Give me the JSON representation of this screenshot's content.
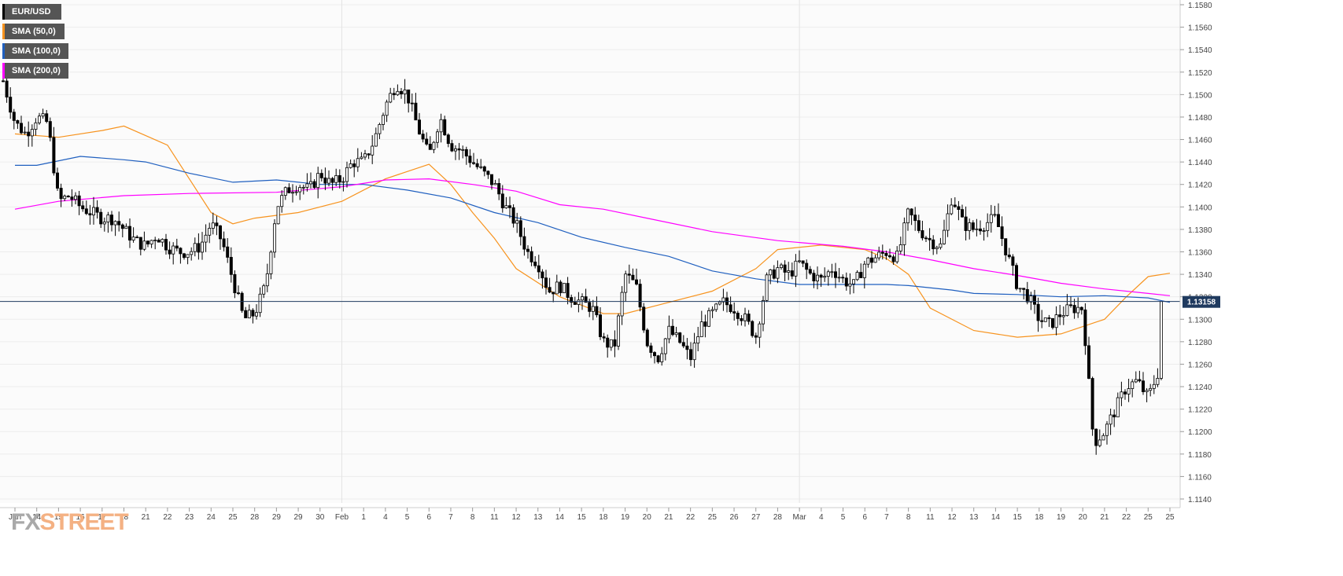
{
  "chart_data": {
    "type": "candlestick",
    "instrument": "EUR/USD",
    "legend": [
      {
        "label": "EUR/USD",
        "color": "#000000"
      },
      {
        "label": "SMA (50,0)",
        "color": "#f7931e"
      },
      {
        "label": "SMA (100,0)",
        "color": "#1f5fbf"
      },
      {
        "label": "SMA (200,0)",
        "color": "#ff00ff"
      }
    ],
    "ylim": [
      1.1135,
      1.1585
    ],
    "y_ticks": [
      "1.1580",
      "1.1560",
      "1.1540",
      "1.1520",
      "1.1500",
      "1.1480",
      "1.1460",
      "1.1440",
      "1.1420",
      "1.1400",
      "1.1380",
      "1.1360",
      "1.1340",
      "1.1320",
      "1.1300",
      "1.1280",
      "1.1260",
      "1.1240",
      "1.1220",
      "1.1200",
      "1.1180",
      "1.1160",
      "1.1140"
    ],
    "x_ticks": [
      "Jan",
      "14",
      "15",
      "16",
      "17",
      "18",
      "21",
      "22",
      "23",
      "24",
      "25",
      "28",
      "29",
      "29",
      "30",
      "Feb",
      "1",
      "4",
      "5",
      "6",
      "7",
      "8",
      "11",
      "12",
      "13",
      "14",
      "15",
      "18",
      "19",
      "20",
      "21",
      "22",
      "25",
      "26",
      "27",
      "28",
      "Mar",
      "4",
      "5",
      "6",
      "7",
      "8",
      "11",
      "12",
      "13",
      "14",
      "15",
      "18",
      "19",
      "20",
      "21",
      "22",
      "25",
      "25"
    ],
    "current_price": "1.13158",
    "current_price_value": 1.13158,
    "grid": true,
    "legend_position": "top-left",
    "series_points": {
      "sma50": [
        [
          0,
          1.1465
        ],
        [
          2,
          1.1462
        ],
        [
          4,
          1.1468
        ],
        [
          5,
          1.1472
        ],
        [
          7,
          1.1455
        ],
        [
          8,
          1.1425
        ],
        [
          9,
          1.1395
        ],
        [
          10,
          1.1385
        ],
        [
          11,
          1.139
        ],
        [
          13,
          1.1395
        ],
        [
          15,
          1.1405
        ],
        [
          17,
          1.1425
        ],
        [
          19,
          1.1438
        ],
        [
          20,
          1.142
        ],
        [
          21,
          1.1395
        ],
        [
          22,
          1.1372
        ],
        [
          23,
          1.1345
        ],
        [
          25,
          1.132
        ],
        [
          27,
          1.1305
        ],
        [
          28,
          1.1305
        ],
        [
          30,
          1.1315
        ],
        [
          32,
          1.1325
        ],
        [
          34,
          1.1345
        ],
        [
          35,
          1.1362
        ],
        [
          37,
          1.1366
        ],
        [
          39,
          1.1362
        ],
        [
          40,
          1.1354
        ],
        [
          41,
          1.134
        ],
        [
          42,
          1.131
        ],
        [
          44,
          1.129
        ],
        [
          46,
          1.1284
        ],
        [
          48,
          1.1287
        ],
        [
          50,
          1.13
        ],
        [
          51,
          1.132
        ],
        [
          52,
          1.1338
        ],
        [
          53,
          1.1341
        ]
      ],
      "sma100": [
        [
          0,
          1.1437
        ],
        [
          1,
          1.1437
        ],
        [
          3,
          1.1445
        ],
        [
          5,
          1.1442
        ],
        [
          6,
          1.144
        ],
        [
          8,
          1.143
        ],
        [
          10,
          1.1422
        ],
        [
          12,
          1.1424
        ],
        [
          14,
          1.142
        ],
        [
          16,
          1.142
        ],
        [
          18,
          1.1415
        ],
        [
          20,
          1.1408
        ],
        [
          22,
          1.1395
        ],
        [
          24,
          1.1386
        ],
        [
          26,
          1.1373
        ],
        [
          28,
          1.1364
        ],
        [
          30,
          1.1356
        ],
        [
          32,
          1.1343
        ],
        [
          34,
          1.1336
        ],
        [
          36,
          1.1331
        ],
        [
          38,
          1.1331
        ],
        [
          40,
          1.1331
        ],
        [
          41,
          1.133
        ],
        [
          43,
          1.1326
        ],
        [
          44,
          1.1323
        ],
        [
          46,
          1.1322
        ],
        [
          48,
          1.132
        ],
        [
          50,
          1.1321
        ],
        [
          52,
          1.1319
        ],
        [
          53,
          1.1315
        ]
      ],
      "sma200": [
        [
          0,
          1.1398
        ],
        [
          2,
          1.1405
        ],
        [
          5,
          1.141
        ],
        [
          8,
          1.1412
        ],
        [
          12,
          1.1413
        ],
        [
          15,
          1.1418
        ],
        [
          17,
          1.1424
        ],
        [
          19,
          1.1425
        ],
        [
          21,
          1.142
        ],
        [
          23,
          1.1414
        ],
        [
          25,
          1.1402
        ],
        [
          27,
          1.1398
        ],
        [
          29,
          1.139
        ],
        [
          32,
          1.1378
        ],
        [
          35,
          1.137
        ],
        [
          38,
          1.1365
        ],
        [
          40,
          1.136
        ],
        [
          42,
          1.1353
        ],
        [
          44,
          1.1345
        ],
        [
          46,
          1.1339
        ],
        [
          48,
          1.1332
        ],
        [
          50,
          1.1327
        ],
        [
          52,
          1.1323
        ],
        [
          53,
          1.1321
        ]
      ]
    }
  },
  "brand": {
    "fx": "FX",
    "street": "STREET"
  }
}
